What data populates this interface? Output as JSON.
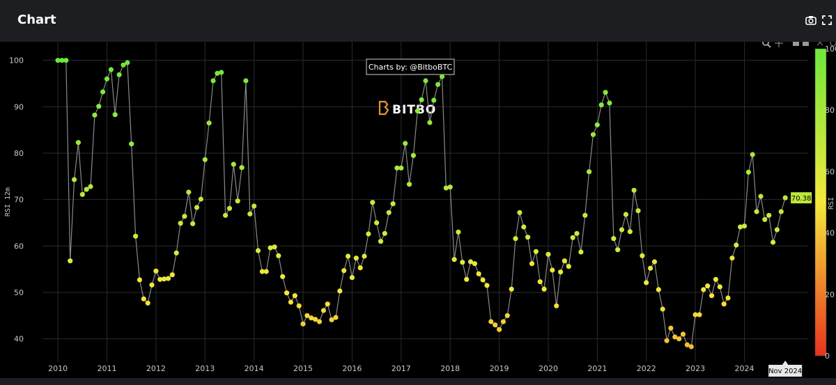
{
  "header": {
    "title": "Chart",
    "icons": [
      "camera-icon",
      "fullscreen-icon"
    ]
  },
  "modebar": {
    "icons": [
      "zoom-icon",
      "pan-icon",
      "zoom-in-icon",
      "zoom-out-icon",
      "autoscale-icon",
      "reset-icon"
    ]
  },
  "watermark": {
    "credit": "Charts by: @BitboBTC",
    "brand": "BITBO"
  },
  "colors": {
    "background": "#000000",
    "header_bg": "#1d1e22",
    "line": "#8a8a8a",
    "grid": "#2b2b2b",
    "low": "#e8321e",
    "mid": "#f5e83c",
    "high": "#6ee83c"
  },
  "chart_data": {
    "type": "scatter",
    "mode": "lines+markers",
    "ylabel": "RSI 12m",
    "colorbar_label": "RSI",
    "ylim": [
      35,
      104
    ],
    "xlim": [
      2009.7,
      2025.3
    ],
    "yticks": [
      40,
      50,
      60,
      70,
      80,
      90,
      100
    ],
    "xticks": [
      "2010",
      "2011",
      "2012",
      "2013",
      "2014",
      "2015",
      "2016",
      "2017",
      "2018",
      "2019",
      "2020",
      "2021",
      "2022",
      "2023",
      "2024"
    ],
    "colorbar_ticks": [
      "0",
      "20",
      "40",
      "60",
      "80",
      "100"
    ],
    "colorbar_range": [
      0,
      100
    ],
    "last_value_label": "70.38",
    "hover_x_label": "Nov 2024",
    "grid": true,
    "series": [
      {
        "x": [
          "2010-01",
          "2010-02",
          "2010-03",
          "2010-04",
          "2010-05",
          "2010-06",
          "2010-07",
          "2010-08",
          "2010-09",
          "2010-10",
          "2010-11",
          "2010-12",
          "2011-01",
          "2011-02",
          "2011-03",
          "2011-04",
          "2011-05",
          "2011-06",
          "2011-07",
          "2011-08",
          "2011-09",
          "2011-10",
          "2011-11",
          "2011-12",
          "2012-01",
          "2012-02",
          "2012-03",
          "2012-04",
          "2012-05",
          "2012-06",
          "2012-07",
          "2012-08",
          "2012-09",
          "2012-10",
          "2012-11",
          "2012-12",
          "2013-01",
          "2013-02",
          "2013-03",
          "2013-04",
          "2013-05",
          "2013-06",
          "2013-07",
          "2013-08",
          "2013-09",
          "2013-10",
          "2013-11",
          "2013-12",
          "2014-01",
          "2014-02",
          "2014-03",
          "2014-04",
          "2014-05",
          "2014-06",
          "2014-07",
          "2014-08",
          "2014-09",
          "2014-10",
          "2014-11",
          "2014-12",
          "2015-01",
          "2015-02",
          "2015-03",
          "2015-04",
          "2015-05",
          "2015-06",
          "2015-07",
          "2015-08",
          "2015-09",
          "2015-10",
          "2015-11",
          "2015-12",
          "2016-01",
          "2016-02",
          "2016-03",
          "2016-04",
          "2016-05",
          "2016-06",
          "2016-07",
          "2016-08",
          "2016-09",
          "2016-10",
          "2016-11",
          "2016-12",
          "2017-01",
          "2017-02",
          "2017-03",
          "2017-04",
          "2017-05",
          "2017-06",
          "2017-07",
          "2017-08",
          "2017-09",
          "2017-10",
          "2017-11",
          "2017-12",
          "2018-01",
          "2018-02",
          "2018-03",
          "2018-04",
          "2018-05",
          "2018-06",
          "2018-07",
          "2018-08",
          "2018-09",
          "2018-10",
          "2018-11",
          "2018-12",
          "2019-01",
          "2019-02",
          "2019-03",
          "2019-04",
          "2019-05",
          "2019-06",
          "2019-07",
          "2019-08",
          "2019-09",
          "2019-10",
          "2019-11",
          "2019-12",
          "2020-01",
          "2020-02",
          "2020-03",
          "2020-04",
          "2020-05",
          "2020-06",
          "2020-07",
          "2020-08",
          "2020-09",
          "2020-10",
          "2020-11",
          "2020-12",
          "2021-01",
          "2021-02",
          "2021-03",
          "2021-04",
          "2021-05",
          "2021-06",
          "2021-07",
          "2021-08",
          "2021-09",
          "2021-10",
          "2021-11",
          "2021-12",
          "2022-01",
          "2022-02",
          "2022-03",
          "2022-04",
          "2022-05",
          "2022-06",
          "2022-07",
          "2022-08",
          "2022-09",
          "2022-10",
          "2022-11",
          "2022-12",
          "2023-01",
          "2023-02",
          "2023-03",
          "2023-04",
          "2023-05",
          "2023-06",
          "2023-07",
          "2023-08",
          "2023-09",
          "2023-10",
          "2023-11",
          "2023-12",
          "2024-01",
          "2024-02",
          "2024-03",
          "2024-04",
          "2024-05",
          "2024-06",
          "2024-07",
          "2024-08",
          "2024-09",
          "2024-10",
          "2024-11"
        ],
        "y": [
          100,
          100,
          100,
          56.8,
          74.3,
          82.3,
          71.1,
          72.2,
          72.8,
          88.2,
          90.1,
          93.2,
          96.0,
          98.0,
          88.3,
          96.9,
          99.0,
          99.5,
          82.0,
          62.1,
          52.7,
          48.6,
          47.7,
          51.6,
          54.6,
          52.8,
          52.9,
          53.0,
          53.8,
          58.5,
          64.9,
          66.4,
          71.6,
          64.8,
          68.3,
          70.1,
          78.6,
          86.5,
          95.6,
          97.2,
          97.4,
          66.6,
          68.1,
          77.6,
          69.7,
          76.9,
          95.6,
          66.9,
          68.6,
          59.0,
          54.5,
          54.5,
          59.6,
          59.8,
          57.9,
          53.4,
          49.9,
          47.9,
          49.3,
          47.1,
          43.2,
          45.0,
          44.5,
          44.2,
          43.7,
          46.1,
          47.5,
          44.1,
          44.6,
          50.3,
          54.7,
          57.8,
          53.2,
          57.4,
          55.3,
          57.8,
          62.6,
          69.4,
          65.0,
          61.0,
          62.7,
          67.2,
          69.1,
          76.8,
          76.8,
          82.1,
          73.3,
          79.5,
          89.1,
          91.5,
          95.6,
          86.6,
          91.4,
          94.8,
          96.5,
          72.5,
          72.7,
          57.1,
          63.0,
          56.5,
          52.8,
          56.6,
          56.2,
          54.0,
          52.7,
          51.5,
          43.7,
          43.0,
          42.0,
          43.7,
          45.0,
          50.7,
          61.6,
          67.2,
          64.1,
          61.9,
          56.2,
          58.8,
          52.3,
          50.7,
          58.2,
          54.8,
          47.1,
          54.4,
          56.8,
          55.6,
          61.8,
          62.7,
          58.7,
          66.6,
          76.0,
          84.0,
          86.1,
          90.4,
          93.1,
          90.8,
          61.6,
          59.2,
          63.5,
          66.8,
          63.1,
          72.0,
          67.6,
          57.9,
          52.1,
          55.2,
          56.6,
          50.6,
          46.4,
          39.6,
          42.3,
          40.4,
          40.0,
          41.0,
          38.7,
          38.3,
          45.2,
          45.2,
          50.6,
          51.4,
          49.3,
          52.8,
          51.2,
          47.5,
          48.8,
          57.4,
          60.2,
          64.1,
          64.3,
          75.9,
          79.7,
          67.4,
          70.7,
          65.7,
          66.6,
          60.8,
          63.5,
          67.4,
          70.38
        ]
      }
    ]
  }
}
